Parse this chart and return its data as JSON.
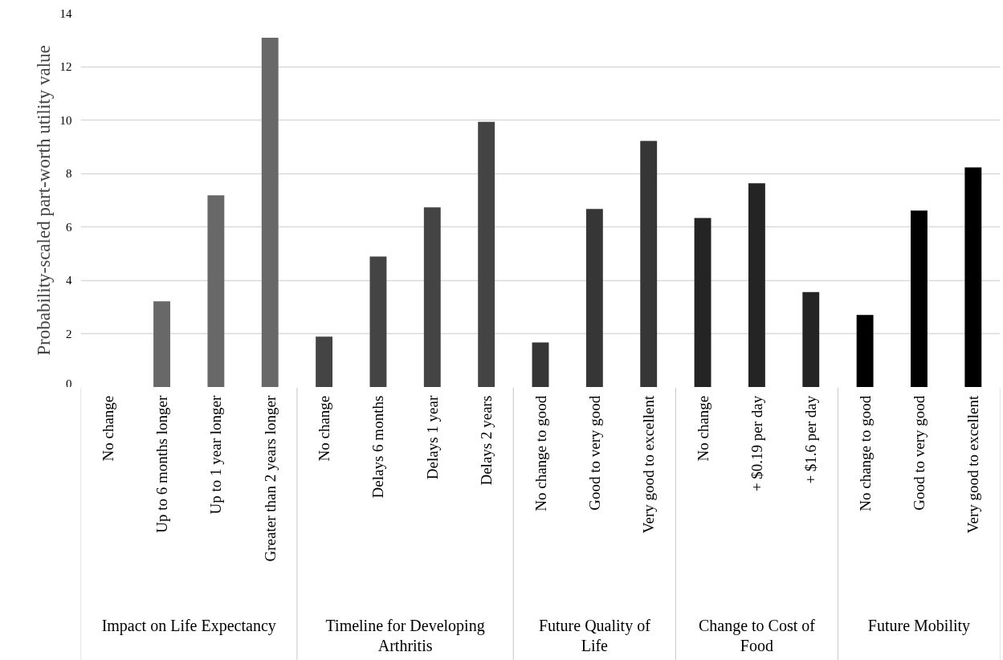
{
  "chart_data": {
    "type": "bar",
    "ylabel": "Probability-scaled part-worth utility value",
    "categories": [
      "No change",
      "Up to 6 months longer",
      "Up to 1 year longer",
      "Greater than 2 years longer",
      "No change",
      "Delays 6 months",
      "Delays 1 year",
      "Delays 2 years",
      "No change to good",
      "Good to very good",
      "Very good to excellent",
      "No change",
      "+ $0.19 per day",
      "+ $1.6 per day",
      "No change to good",
      "Good to very good",
      "Very good to excellent"
    ],
    "series": [
      {
        "color": "#686868",
        "values": [
          0,
          3.22,
          7.19,
          13.08,
          null,
          null,
          null,
          null,
          null,
          null,
          null,
          null,
          null,
          null,
          null,
          null,
          null
        ]
      },
      {
        "color": "#444444",
        "values": [
          null,
          null,
          null,
          null,
          1.9,
          4.9,
          6.74,
          9.94,
          null,
          null,
          null,
          null,
          null,
          null,
          null,
          null,
          null
        ]
      },
      {
        "color": "#363636",
        "values": [
          null,
          null,
          null,
          null,
          null,
          null,
          null,
          null,
          1.68,
          6.68,
          9.22,
          null,
          null,
          null,
          null,
          null,
          null
        ]
      },
      {
        "color": "#242424",
        "values": [
          null,
          null,
          null,
          null,
          null,
          null,
          null,
          null,
          null,
          null,
          null,
          6.34,
          7.64,
          3.57,
          null,
          null,
          null
        ]
      },
      {
        "color": "#000000",
        "values": [
          null,
          null,
          null,
          null,
          null,
          null,
          null,
          null,
          null,
          null,
          null,
          null,
          null,
          null,
          2.71,
          6.62,
          8.23
        ]
      }
    ],
    "annotations": [
      "Impact on Life Expectancy",
      "Timeline for Developing Arthritis",
      "Future Quality of Life",
      "Change to Cost of Food",
      "Future Mobility"
    ],
    "ylim": [
      0,
      14
    ],
    "yticks": [
      0,
      2,
      4,
      6,
      8,
      10,
      12,
      14
    ],
    "grid": "y"
  }
}
